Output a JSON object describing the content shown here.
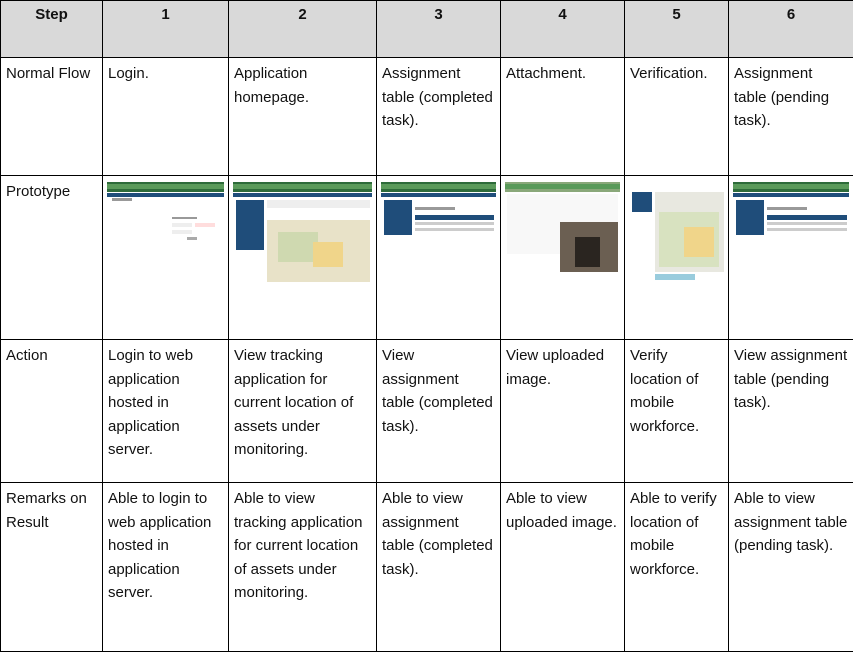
{
  "table": {
    "header": [
      "Step",
      "1",
      "2",
      "3",
      "4",
      "5",
      "6"
    ],
    "rows": [
      [
        "Normal Flow",
        "Login.",
        "Application homepage.",
        "Assignment table (completed task).",
        "Attachment.",
        "Verification.",
        "Assignment table (pending task)."
      ],
      [
        "Prototype"
      ],
      [
        "Action",
        "Login to web application hosted in application server.",
        "View tracking application for current location of assets under monitoring.",
        "View assignment table (completed task).",
        "View uploaded image.",
        "Verify location of mobile workforce.",
        "View assignment table (pending task)."
      ],
      [
        "Remarks on Result",
        "Able to login to web application hosted in application server.",
        "Able to view tracking application for current location of assets under monitoring.",
        "Able to view assignment table (completed task).",
        "Able to view uploaded image.",
        "Able to verify location of mobile workforce.",
        "Able to view assignment table (pending task)."
      ]
    ]
  }
}
